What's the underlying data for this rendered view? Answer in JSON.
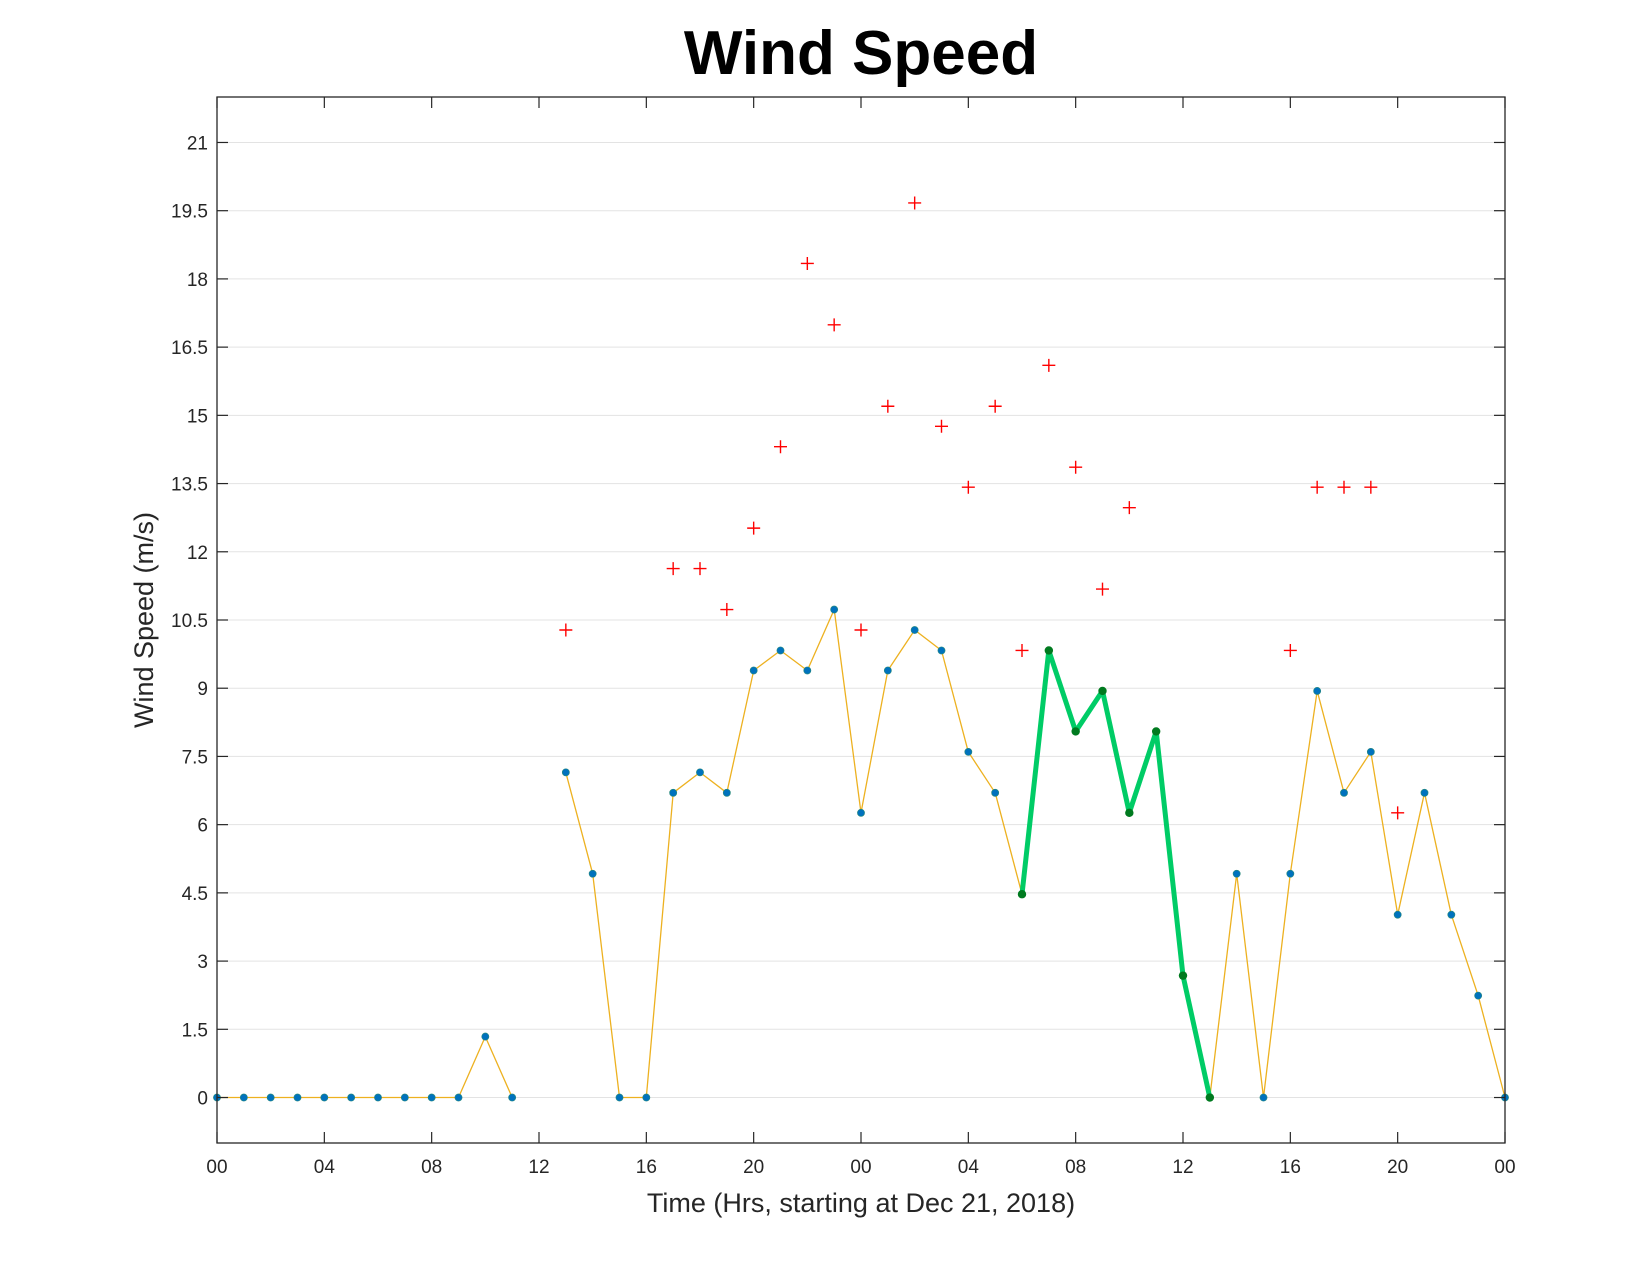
{
  "chart_data": {
    "type": "line",
    "title": "Wind Speed",
    "xlabel": "Time (Hrs, starting at Dec 21, 2018)",
    "ylabel": "Wind Speed (m/s)",
    "xlim": [
      0,
      48
    ],
    "ylim": [
      -1,
      22
    ],
    "x_ticks": [
      0,
      4,
      8,
      12,
      16,
      20,
      24,
      28,
      32,
      36,
      40,
      44,
      48
    ],
    "x_tick_labels": [
      "00",
      "04",
      "08",
      "12",
      "16",
      "20",
      "00",
      "04",
      "08",
      "12",
      "16",
      "20",
      "00"
    ],
    "y_ticks": [
      0,
      1.5,
      3,
      4.5,
      6,
      7.5,
      9,
      10.5,
      12,
      13.5,
      15,
      16.5,
      18,
      19.5,
      21
    ],
    "y_tick_labels": [
      "0",
      "1.5",
      "3",
      "4.5",
      "6",
      "7.5",
      "9",
      "10.5",
      "12",
      "13.5",
      "15",
      "16.5",
      "18",
      "19.5",
      "21"
    ],
    "grid": "horizontal",
    "colors": {
      "speed_line": "#EDB120",
      "speed_marker": "#0072BD",
      "gust_marker": "#FF0000",
      "highlight_line": "#00CC66",
      "highlight_marker": "#007A1F"
    },
    "series": [
      {
        "style": "line-with-dots",
        "x": [
          0,
          1,
          2,
          3,
          4,
          5,
          6,
          7,
          8,
          9,
          10,
          11,
          12,
          13,
          14,
          15,
          16,
          17,
          18,
          19,
          20,
          21,
          22,
          23,
          24,
          25,
          26,
          27,
          28,
          29,
          30,
          31,
          32,
          33,
          34,
          35,
          36,
          37,
          38,
          39,
          40,
          41,
          42,
          43,
          44,
          45,
          46,
          47,
          48
        ],
        "y": [
          0,
          0,
          0,
          0,
          0,
          0,
          0,
          0,
          0,
          0,
          1.34,
          0,
          null,
          7.15,
          4.92,
          0,
          0,
          6.7,
          7.15,
          6.7,
          9.39,
          9.83,
          9.39,
          10.73,
          6.26,
          9.39,
          10.28,
          9.83,
          7.6,
          6.7,
          4.47,
          9.83,
          8.05,
          8.94,
          6.26,
          8.05,
          2.68,
          0,
          4.92,
          0,
          4.92,
          8.94,
          6.7,
          7.6,
          4.02,
          6.7,
          4.02,
          2.24,
          0
        ]
      },
      {
        "style": "highlight",
        "x": [
          30,
          31,
          32,
          33,
          34,
          35,
          36,
          37
        ],
        "y": [
          4.47,
          9.83,
          8.05,
          8.94,
          6.26,
          8.05,
          2.68,
          0
        ]
      },
      {
        "style": "plus-markers",
        "x": [
          13,
          17,
          18,
          19,
          20,
          21,
          22,
          23,
          24,
          25,
          26,
          27,
          28,
          29,
          30,
          31,
          32,
          33,
          34,
          40,
          41,
          42,
          43,
          44
        ],
        "y": [
          10.28,
          11.63,
          11.63,
          10.73,
          12.52,
          14.31,
          18.34,
          16.99,
          10.28,
          15.2,
          19.67,
          14.76,
          13.42,
          15.2,
          9.83,
          16.1,
          13.86,
          11.18,
          12.97,
          9.83,
          13.42,
          13.42,
          13.42,
          6.26
        ]
      }
    ]
  }
}
